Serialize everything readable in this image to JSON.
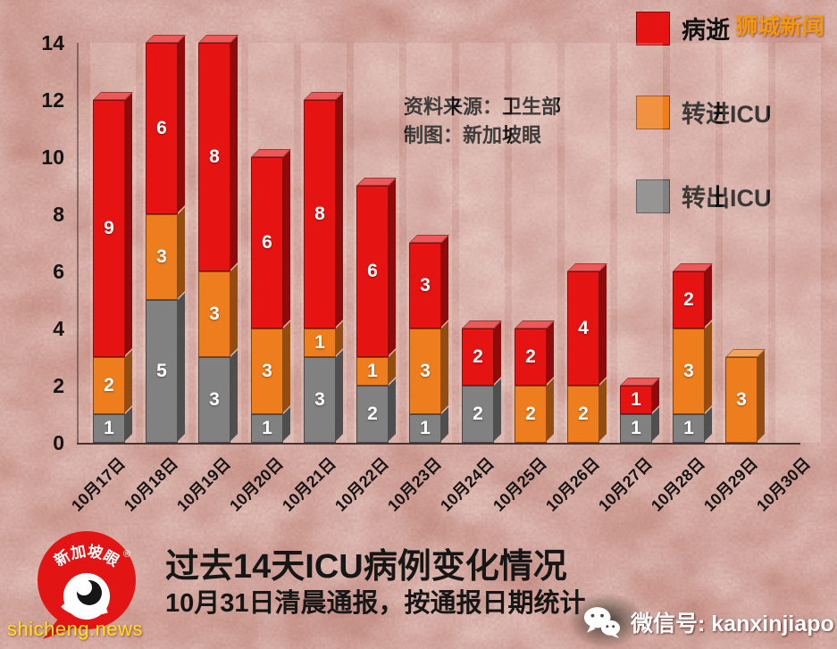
{
  "watermark": {
    "top_right": "狮城新闻",
    "bottom_left": "shicheng.news"
  },
  "annotations": {
    "source": "资料来源：卫生部",
    "credit": "制图：新加坡眼"
  },
  "title_block": {
    "title": "过去14天ICU病例变化情况",
    "subtitle": "10月31日清晨通报，按通报日期统计"
  },
  "footer": {
    "wechat_label": "微信号: kanxinjiapo"
  },
  "logo": {
    "brand": "新加坡眼",
    "reg_mark": "®"
  },
  "chart_data": {
    "type": "bar",
    "stacked": true,
    "style": "3d-column",
    "title": "过去14天ICU病例变化情况",
    "categories": [
      "10月17日",
      "10月18日",
      "10月19日",
      "10月20日",
      "10月21日",
      "10月22日",
      "10月23日",
      "10月24日",
      "10月25日",
      "10月26日",
      "10月27日",
      "10月28日",
      "10月29日",
      "10月30日"
    ],
    "series": [
      {
        "name": "转出ICU",
        "color": "#818181",
        "values": [
          1,
          5,
          3,
          1,
          3,
          2,
          1,
          2,
          0,
          0,
          1,
          1,
          0,
          0
        ]
      },
      {
        "name": "转进ICU",
        "color": "#ee7d1d",
        "values": [
          2,
          3,
          3,
          3,
          1,
          1,
          3,
          0,
          2,
          2,
          0,
          3,
          3,
          0
        ]
      },
      {
        "name": "病逝",
        "color": "#e61313",
        "values": [
          9,
          6,
          8,
          6,
          8,
          6,
          3,
          2,
          2,
          4,
          1,
          2,
          0,
          0
        ]
      }
    ],
    "legend": [
      {
        "label": "病逝",
        "color": "#e61313"
      },
      {
        "label": "转进ICU",
        "color": "#ee7d1d"
      },
      {
        "label": "转出ICU",
        "color": "#818181"
      }
    ],
    "ylim": [
      0,
      14
    ],
    "yticks": [
      0,
      2,
      4,
      6,
      8,
      10,
      12,
      14
    ],
    "grid": false,
    "legend_position": "top-right"
  }
}
